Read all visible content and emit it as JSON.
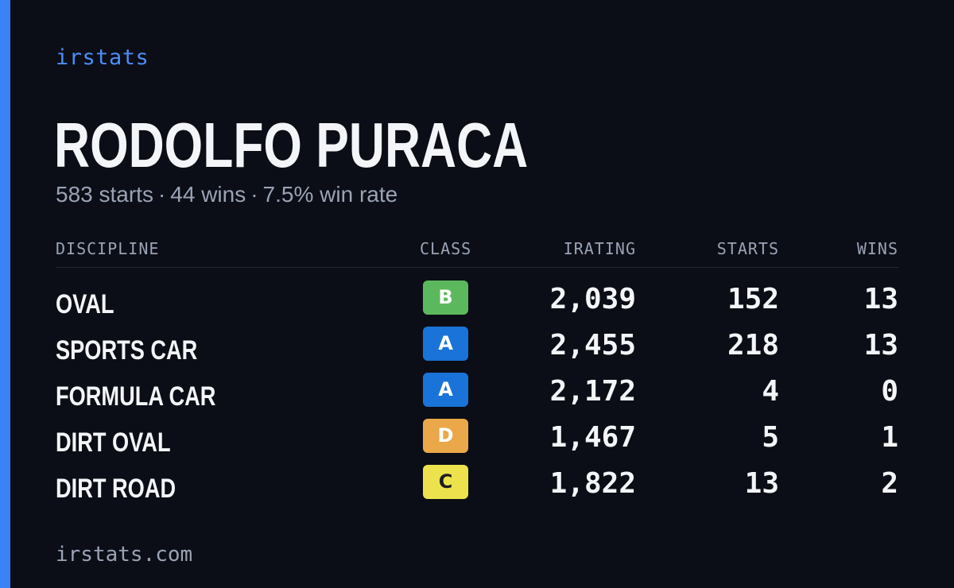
{
  "brand": "irstats",
  "driver": {
    "name": "RODOLFO PURACA",
    "starts_text": "583 starts",
    "wins_text": "44 wins",
    "win_rate_text": "7.5% win rate",
    "separator": "·"
  },
  "table": {
    "headers": {
      "discipline": "DISCIPLINE",
      "class": "CLASS",
      "irating": "IRATING",
      "starts": "STARTS",
      "wins": "WINS"
    },
    "rows": [
      {
        "discipline": "OVAL",
        "class": "B",
        "class_bg": "#5cb85c",
        "class_fg": "#ffffff",
        "irating": "2,039",
        "starts": "152",
        "wins": "13"
      },
      {
        "discipline": "SPORTS CAR",
        "class": "A",
        "class_bg": "#1a73d9",
        "class_fg": "#ffffff",
        "irating": "2,455",
        "starts": "218",
        "wins": "13"
      },
      {
        "discipline": "FORMULA CAR",
        "class": "A",
        "class_bg": "#1a73d9",
        "class_fg": "#ffffff",
        "irating": "2,172",
        "starts": "4",
        "wins": "0"
      },
      {
        "discipline": "DIRT OVAL",
        "class": "D",
        "class_bg": "#eba84a",
        "class_fg": "#ffffff",
        "irating": "1,467",
        "starts": "5",
        "wins": "1"
      },
      {
        "discipline": "DIRT ROAD",
        "class": "C",
        "class_bg": "#ece24e",
        "class_fg": "#1d1d1d",
        "irating": "1,822",
        "starts": "13",
        "wins": "2"
      }
    ]
  },
  "footer": "irstats.com",
  "colors": {
    "background": "#0b0e16",
    "accent": "#3b82f6",
    "brand_text": "#4b8ef7",
    "muted_text": "#9aa3b5",
    "primary_text": "#f4f5f8"
  }
}
